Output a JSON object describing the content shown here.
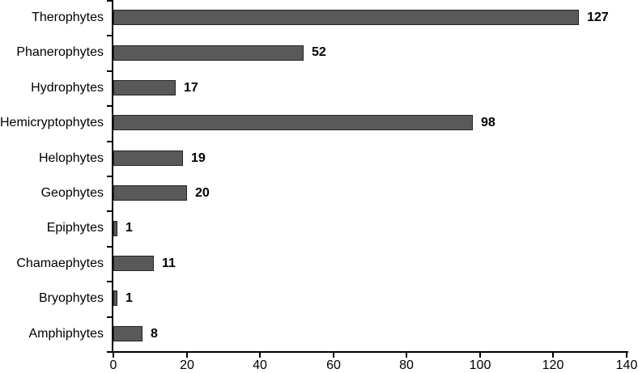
{
  "chart_data": {
    "type": "bar",
    "orientation": "horizontal",
    "title": "",
    "xlabel": "",
    "ylabel": "",
    "categories": [
      "Therophytes",
      "Phanerophytes",
      "Hydrophytes",
      "Hemicryptophytes",
      "Helophytes",
      "Geophytes",
      "Epiphytes",
      "Chamaephytes",
      "Bryophytes",
      "Amphiphytes"
    ],
    "values": [
      127,
      52,
      17,
      98,
      19,
      20,
      1,
      11,
      1,
      8
    ],
    "data_labels": [
      "127",
      "52",
      "17",
      "98",
      "19",
      "20",
      "1",
      "11",
      "1",
      "8"
    ],
    "xlim": [
      0,
      140
    ],
    "xticks": [
      0,
      20,
      40,
      60,
      80,
      100,
      120,
      140
    ],
    "grid": false,
    "legend": false,
    "colors": {
      "bar_fill": "#595959",
      "bar_border": "#262626",
      "axis": "#000000",
      "text": "#000000",
      "background": "#ffffff"
    }
  }
}
